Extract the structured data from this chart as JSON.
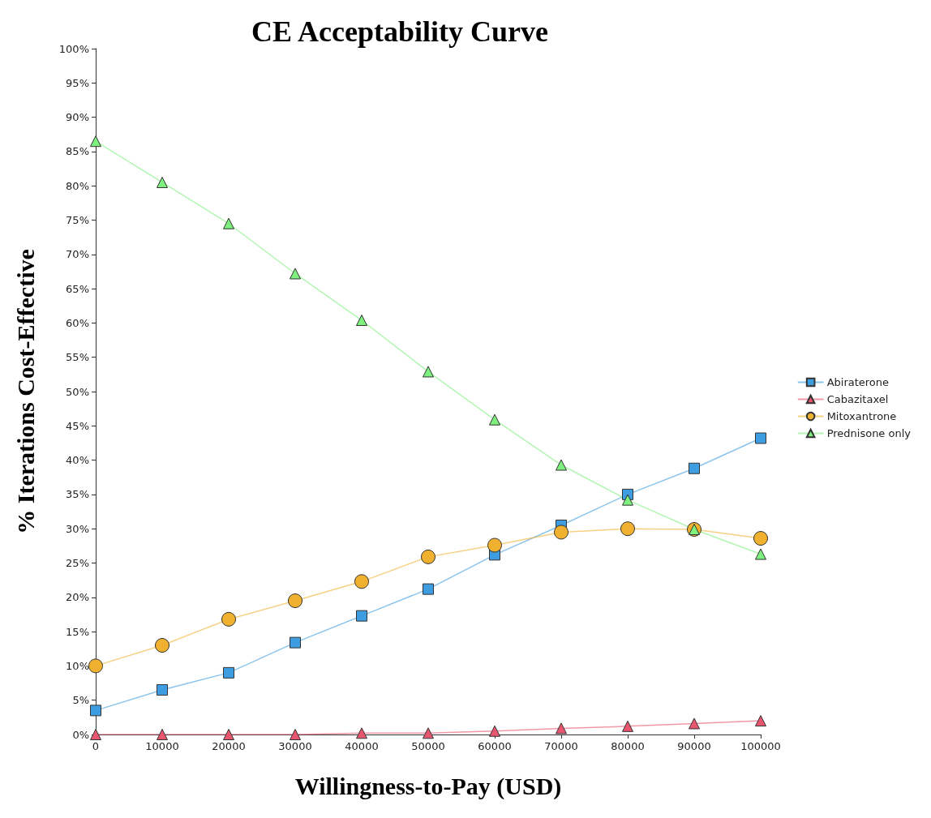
{
  "chart_data": {
    "type": "line",
    "title": "CE Acceptability Curve",
    "xlabel": "Willingness-to-Pay (USD)",
    "ylabel": "% Iterations Cost-Effective",
    "x": [
      0,
      10000,
      20000,
      30000,
      40000,
      50000,
      60000,
      70000,
      80000,
      90000,
      100000
    ],
    "series": [
      {
        "name": "Abiraterone",
        "color": "#3d9de0",
        "marker": "square",
        "values": [
          3.5,
          6.5,
          9,
          13.4,
          17.3,
          21.2,
          26.2,
          30.5,
          35,
          38.8,
          43.2
        ]
      },
      {
        "name": "Cabazitaxel",
        "color": "#e8556e",
        "marker": "triangle",
        "values": [
          0,
          0,
          0,
          0,
          0.2,
          0.2,
          0.5,
          0.9,
          1.2,
          1.6,
          2.0
        ]
      },
      {
        "name": "Mitoxantrone",
        "color": "#f0b030",
        "marker": "circle",
        "values": [
          10,
          13,
          16.8,
          19.5,
          22.3,
          25.9,
          27.6,
          29.5,
          30,
          29.9,
          28.6
        ]
      },
      {
        "name": "Prednisone only",
        "color": "#7ef07e",
        "marker": "triangle",
        "values": [
          86.5,
          80.5,
          74.5,
          67.2,
          60.4,
          52.9,
          45.9,
          39.3,
          34.2,
          29.9,
          26.3
        ]
      }
    ],
    "xlim": [
      0,
      100000
    ],
    "xticks": [
      0,
      10000,
      20000,
      30000,
      40000,
      50000,
      60000,
      70000,
      80000,
      90000,
      100000
    ],
    "ylim": [
      0,
      100
    ],
    "yticks": [
      {
        "value": 0,
        "label": "0%"
      },
      {
        "value": 5,
        "label": "5%"
      },
      {
        "value": 10,
        "label": "10%"
      },
      {
        "value": 15,
        "label": "15%"
      },
      {
        "value": 20,
        "label": "20%"
      },
      {
        "value": 25,
        "label": "25%"
      },
      {
        "value": 30,
        "label": "30%"
      },
      {
        "value": 35,
        "label": "35%"
      },
      {
        "value": 40,
        "label": "40%"
      },
      {
        "value": 45,
        "label": "45%"
      },
      {
        "value": 50,
        "label": "50%"
      },
      {
        "value": 55,
        "label": "55%"
      },
      {
        "value": 60,
        "label": "60%"
      },
      {
        "value": 65,
        "label": "65%"
      },
      {
        "value": 70,
        "label": "70%"
      },
      {
        "value": 75,
        "label": "75%"
      },
      {
        "value": 80,
        "label": "80%"
      },
      {
        "value": 85,
        "label": "85%"
      },
      {
        "value": 90,
        "label": "90%"
      },
      {
        "value": 95,
        "label": "95%"
      },
      {
        "value": 100,
        "label": "100%"
      }
    ],
    "grid": false,
    "legend": "right",
    "line_style": "solid"
  }
}
